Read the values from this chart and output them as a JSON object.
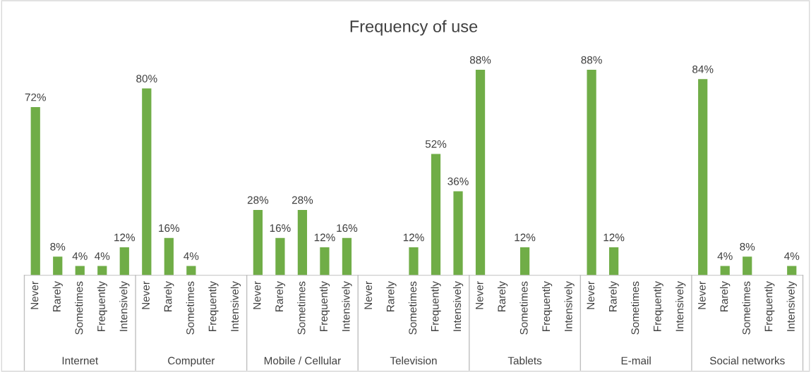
{
  "chart_data": {
    "type": "bar",
    "title": "Frequency of use",
    "categories": [
      "Never",
      "Rarely",
      "Sometimes",
      "Frequently",
      "Intensively",
      "Never",
      "Rarely",
      "Sometimes",
      "Frequently",
      "Intensively",
      "Never",
      "Rarely",
      "Sometimes",
      "Frequently",
      "Intensively",
      "Never",
      "Rarely",
      "Sometimes",
      "Frequently",
      "Intensively",
      "Never",
      "Rarely",
      "Sometimes",
      "Frequently",
      "Intensively",
      "Never",
      "Rarely",
      "Sometimes",
      "Frequently",
      "Intensively",
      "Never",
      "Rarely",
      "Sometimes",
      "Frequently",
      "Intensively"
    ],
    "values": [
      72,
      8,
      4,
      4,
      12,
      80,
      16,
      4,
      0,
      0,
      28,
      16,
      28,
      12,
      16,
      0,
      0,
      12,
      52,
      36,
      88,
      0,
      12,
      0,
      0,
      88,
      12,
      0,
      0,
      0,
      84,
      4,
      8,
      0,
      4
    ],
    "value_labels": [
      "72%",
      "8%",
      "4%",
      "4%",
      "12%",
      "80%",
      "16%",
      "4%",
      null,
      null,
      "28%",
      "16%",
      "28%",
      "12%",
      "16%",
      null,
      null,
      "12%",
      "52%",
      "36%",
      "88%",
      null,
      "12%",
      null,
      null,
      "88%",
      "12%",
      null,
      null,
      null,
      "84%",
      "4%",
      "8%",
      null,
      "4%"
    ],
    "color": "#70ad47",
    "annotations": [
      "Internet",
      "Computer",
      "Mobile / Cellular",
      "Television",
      "Tablets",
      "E-mail",
      "Social networks"
    ],
    "grid": false,
    "legend": false
  }
}
